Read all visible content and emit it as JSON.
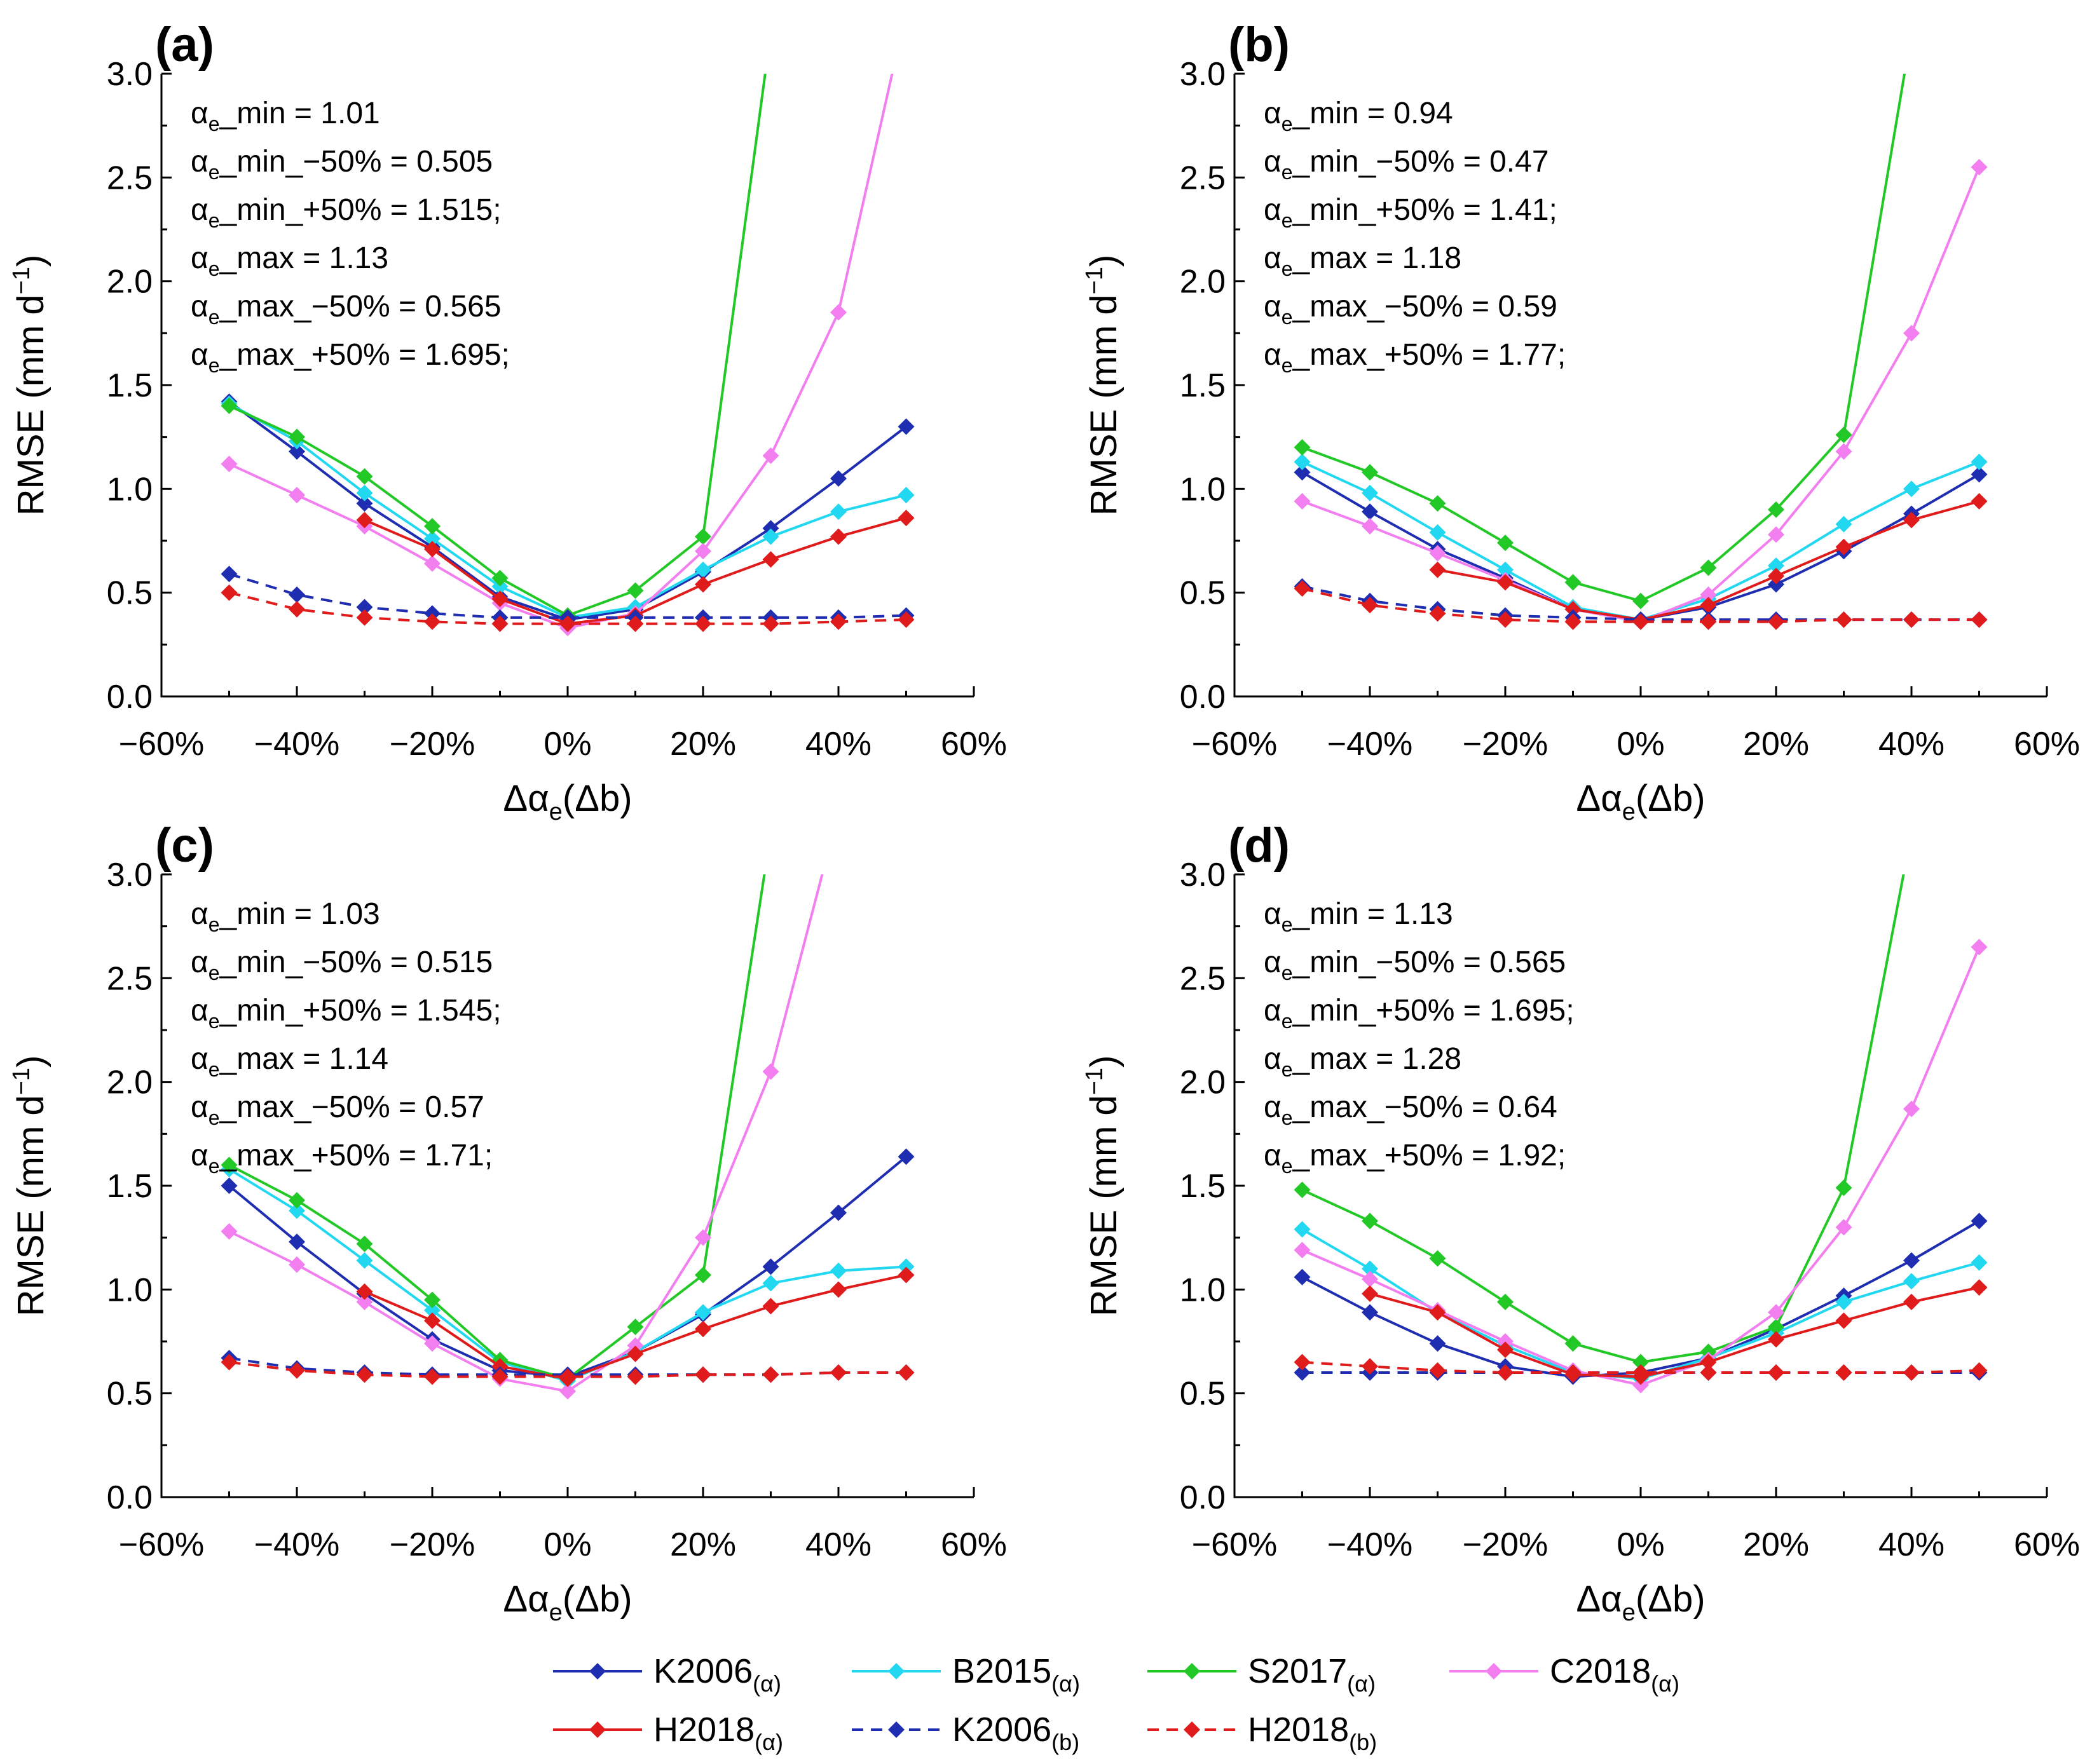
{
  "series_styles": [
    {
      "key": "K2006a",
      "color": "#1f2db0",
      "dash": false
    },
    {
      "key": "B2015a",
      "color": "#22d8f0",
      "dash": false
    },
    {
      "key": "S2017a",
      "color": "#22c825",
      "dash": false
    },
    {
      "key": "C2018a",
      "color": "#f27ef0",
      "dash": false
    },
    {
      "key": "H2018a",
      "color": "#e01b1b",
      "dash": false
    },
    {
      "key": "K2006b",
      "color": "#1f2db0",
      "dash": true
    },
    {
      "key": "H2018b",
      "color": "#e01b1b",
      "dash": true
    }
  ],
  "legend": [
    {
      "base": "K2006",
      "sub": "(α)",
      "color": "#1f2db0",
      "dash": false
    },
    {
      "base": "B2015",
      "sub": "(α)",
      "color": "#22d8f0",
      "dash": false
    },
    {
      "base": "S2017",
      "sub": "(α)",
      "color": "#22c825",
      "dash": false
    },
    {
      "base": "C2018",
      "sub": "(α)",
      "color": "#f27ef0",
      "dash": false
    },
    {
      "base": "H2018",
      "sub": "(α)",
      "color": "#e01b1b",
      "dash": false
    },
    {
      "base": "K2006",
      "sub": "(b)",
      "color": "#1f2db0",
      "dash": true
    },
    {
      "base": "H2018",
      "sub": "(b)",
      "color": "#e01b1b",
      "dash": true
    }
  ],
  "chart_data": [
    {
      "type": "line",
      "panel_label": "(a)",
      "xlabel": {
        "main": "Δα",
        "sub": "e",
        "tail": "(Δb)"
      },
      "ylabel": {
        "main": "RMSE (mm d",
        "sup": "−1",
        "tail": ")"
      },
      "x": [
        -50,
        -40,
        -30,
        -20,
        -10,
        0,
        10,
        20,
        30,
        40,
        50
      ],
      "xlim": [
        -60,
        60
      ],
      "ylim": [
        0,
        3
      ],
      "xticks": [
        "−60%",
        "−40%",
        "−20%",
        "0%",
        "20%",
        "40%",
        "60%"
      ],
      "yticks": [
        "0.0",
        "0.5",
        "1.0",
        "1.5",
        "2.0",
        "2.5",
        "3.0"
      ],
      "annotations": [
        {
          "pre": "α",
          "sub": "e",
          "text": "_min = 1.01"
        },
        {
          "pre": "α",
          "sub": "e",
          "text": "_min_−50% = 0.505"
        },
        {
          "pre": "α",
          "sub": "e",
          "text": "_min_+50% = 1.515;"
        },
        {
          "pre": "α",
          "sub": "e",
          "text": "_max = 1.13"
        },
        {
          "pre": "α",
          "sub": "e",
          "text": "_max_−50% = 0.565"
        },
        {
          "pre": "α",
          "sub": "e",
          "text": "_max_+50% = 1.695;"
        }
      ],
      "series": [
        {
          "name": "K2006(α)",
          "values": [
            1.42,
            1.18,
            0.93,
            0.72,
            0.48,
            0.37,
            0.42,
            0.6,
            0.81,
            1.05,
            1.3
          ]
        },
        {
          "name": "B2015(α)",
          "values": [
            1.41,
            1.23,
            0.98,
            0.76,
            0.53,
            0.38,
            0.43,
            0.61,
            0.77,
            0.89,
            0.97
          ]
        },
        {
          "name": "S2017(α)",
          "values": [
            1.4,
            1.25,
            1.06,
            0.82,
            0.57,
            0.39,
            0.51,
            0.77,
            3.2,
            null,
            null
          ]
        },
        {
          "name": "C2018(α)",
          "values": [
            1.12,
            0.97,
            0.82,
            0.64,
            0.45,
            0.33,
            0.4,
            0.7,
            1.16,
            1.85,
            3.3
          ]
        },
        {
          "name": "H2018(α)",
          "values": [
            null,
            null,
            0.85,
            0.71,
            0.47,
            0.35,
            0.39,
            0.54,
            0.66,
            0.77,
            0.86
          ]
        },
        {
          "name": "K2006(b)",
          "values": [
            0.59,
            0.49,
            0.43,
            0.4,
            0.38,
            0.38,
            0.38,
            0.38,
            0.38,
            0.38,
            0.39
          ]
        },
        {
          "name": "H2018(b)",
          "values": [
            0.5,
            0.42,
            0.38,
            0.36,
            0.35,
            0.35,
            0.35,
            0.35,
            0.35,
            0.36,
            0.37
          ]
        }
      ]
    },
    {
      "type": "line",
      "panel_label": "(b)",
      "xlabel": {
        "main": "Δα",
        "sub": "e",
        "tail": "(Δb)"
      },
      "ylabel": {
        "main": "RMSE (mm d",
        "sup": "−1",
        "tail": ")"
      },
      "x": [
        -50,
        -40,
        -30,
        -20,
        -10,
        0,
        10,
        20,
        30,
        40,
        50
      ],
      "xlim": [
        -60,
        60
      ],
      "ylim": [
        0,
        3
      ],
      "xticks": [
        "−60%",
        "−40%",
        "−20%",
        "0%",
        "20%",
        "40%",
        "60%"
      ],
      "yticks": [
        "0.0",
        "0.5",
        "1.0",
        "1.5",
        "2.0",
        "2.5",
        "3.0"
      ],
      "annotations": [
        {
          "pre": "α",
          "sub": "e",
          "text": "_min = 0.94"
        },
        {
          "pre": "α",
          "sub": "e",
          "text": "_min_−50% = 0.47"
        },
        {
          "pre": "α",
          "sub": "e",
          "text": "_min_+50% = 1.41;"
        },
        {
          "pre": "α",
          "sub": "e",
          "text": "_max = 1.18"
        },
        {
          "pre": "α",
          "sub": "e",
          "text": "_max_−50% = 0.59"
        },
        {
          "pre": "α",
          "sub": "e",
          "text": "_max_+50% = 1.77;"
        }
      ],
      "series": [
        {
          "name": "K2006(α)",
          "values": [
            1.08,
            0.89,
            0.71,
            0.57,
            0.42,
            0.37,
            0.43,
            0.54,
            0.7,
            0.88,
            1.07
          ]
        },
        {
          "name": "B2015(α)",
          "values": [
            1.13,
            0.98,
            0.79,
            0.61,
            0.43,
            0.37,
            0.47,
            0.63,
            0.83,
            1.0,
            1.13
          ]
        },
        {
          "name": "S2017(α)",
          "values": [
            1.2,
            1.08,
            0.93,
            0.74,
            0.55,
            0.46,
            0.62,
            0.9,
            1.26,
            3.2,
            null
          ]
        },
        {
          "name": "C2018(α)",
          "values": [
            0.94,
            0.82,
            0.69,
            0.56,
            0.42,
            0.36,
            0.49,
            0.78,
            1.18,
            1.75,
            2.55
          ]
        },
        {
          "name": "H2018(α)",
          "values": [
            null,
            null,
            0.61,
            0.55,
            0.42,
            0.37,
            0.44,
            0.58,
            0.72,
            0.85,
            0.94
          ]
        },
        {
          "name": "K2006(b)",
          "values": [
            0.53,
            0.46,
            0.42,
            0.39,
            0.38,
            0.37,
            0.37,
            0.37,
            0.37,
            0.37,
            0.37
          ]
        },
        {
          "name": "H2018(b)",
          "values": [
            0.52,
            0.44,
            0.4,
            0.37,
            0.36,
            0.36,
            0.36,
            0.36,
            0.37,
            0.37,
            0.37
          ]
        }
      ]
    },
    {
      "type": "line",
      "panel_label": "(c)",
      "xlabel": {
        "main": "Δα",
        "sub": "e",
        "tail": "(Δb)"
      },
      "ylabel": {
        "main": "RMSE (mm d",
        "sup": "−1",
        "tail": ")"
      },
      "x": [
        -50,
        -40,
        -30,
        -20,
        -10,
        0,
        10,
        20,
        30,
        40,
        50
      ],
      "xlim": [
        -60,
        60
      ],
      "ylim": [
        0,
        3
      ],
      "xticks": [
        "−60%",
        "−40%",
        "−20%",
        "0%",
        "20%",
        "40%",
        "60%"
      ],
      "yticks": [
        "0.0",
        "0.5",
        "1.0",
        "1.5",
        "2.0",
        "2.5",
        "3.0"
      ],
      "annotations": [
        {
          "pre": "α",
          "sub": "e",
          "text": "_min = 1.03"
        },
        {
          "pre": "α",
          "sub": "e",
          "text": "_min_−50% = 0.515"
        },
        {
          "pre": "α",
          "sub": "e",
          "text": "_min_+50% = 1.545;"
        },
        {
          "pre": "α",
          "sub": "e",
          "text": "_max = 1.14"
        },
        {
          "pre": "α",
          "sub": "e",
          "text": "_max_−50% = 0.57"
        },
        {
          "pre": "α",
          "sub": "e",
          "text": "_max_+50% = 1.71;"
        }
      ],
      "series": [
        {
          "name": "K2006(α)",
          "values": [
            1.5,
            1.23,
            0.98,
            0.76,
            0.61,
            0.58,
            0.7,
            0.88,
            1.11,
            1.37,
            1.64
          ]
        },
        {
          "name": "B2015(α)",
          "values": [
            1.58,
            1.38,
            1.14,
            0.9,
            0.65,
            0.56,
            0.7,
            0.89,
            1.03,
            1.09,
            1.11
          ]
        },
        {
          "name": "S2017(α)",
          "values": [
            1.6,
            1.43,
            1.22,
            0.95,
            0.66,
            0.57,
            0.82,
            1.07,
            3.2,
            null,
            null
          ]
        },
        {
          "name": "C2018(α)",
          "values": [
            1.28,
            1.12,
            0.94,
            0.74,
            0.57,
            0.51,
            0.73,
            1.25,
            2.05,
            3.3,
            null
          ]
        },
        {
          "name": "H2018(α)",
          "values": [
            null,
            null,
            0.99,
            0.85,
            0.63,
            0.57,
            0.69,
            0.81,
            0.92,
            1.0,
            1.07
          ]
        },
        {
          "name": "K2006(b)",
          "values": [
            0.67,
            0.62,
            0.6,
            0.59,
            0.59,
            0.59,
            0.59,
            0.59,
            0.59,
            0.6,
            0.6
          ]
        },
        {
          "name": "H2018(b)",
          "values": [
            0.65,
            0.61,
            0.59,
            0.58,
            0.58,
            0.58,
            0.58,
            0.59,
            0.59,
            0.6,
            0.6
          ]
        }
      ]
    },
    {
      "type": "line",
      "panel_label": "(d)",
      "xlabel": {
        "main": "Δα",
        "sub": "e",
        "tail": "(Δb)"
      },
      "ylabel": {
        "main": "RMSE (mm d",
        "sup": "−1",
        "tail": ")"
      },
      "x": [
        -50,
        -40,
        -30,
        -20,
        -10,
        0,
        10,
        20,
        30,
        40,
        50
      ],
      "xlim": [
        -60,
        60
      ],
      "ylim": [
        0,
        3
      ],
      "xticks": [
        "−60%",
        "−40%",
        "−20%",
        "0%",
        "20%",
        "40%",
        "60%"
      ],
      "yticks": [
        "0.0",
        "0.5",
        "1.0",
        "1.5",
        "2.0",
        "2.5",
        "3.0"
      ],
      "annotations": [
        {
          "pre": "α",
          "sub": "e",
          "text": "_min = 1.13"
        },
        {
          "pre": "α",
          "sub": "e",
          "text": "_min_−50% = 0.565"
        },
        {
          "pre": "α",
          "sub": "e",
          "text": "_min_+50% = 1.695;"
        },
        {
          "pre": "α",
          "sub": "e",
          "text": "_max = 1.28"
        },
        {
          "pre": "α",
          "sub": "e",
          "text": "_max_−50% = 0.64"
        },
        {
          "pre": "α",
          "sub": "e",
          "text": "_max_+50% = 1.92;"
        }
      ],
      "series": [
        {
          "name": "K2006(α)",
          "values": [
            1.06,
            0.89,
            0.74,
            0.63,
            0.58,
            0.6,
            0.67,
            0.81,
            0.97,
            1.14,
            1.33
          ]
        },
        {
          "name": "B2015(α)",
          "values": [
            1.29,
            1.1,
            0.89,
            0.73,
            0.6,
            0.57,
            0.67,
            0.79,
            0.94,
            1.04,
            1.13
          ]
        },
        {
          "name": "S2017(α)",
          "values": [
            1.48,
            1.33,
            1.15,
            0.94,
            0.74,
            0.65,
            0.7,
            0.82,
            1.49,
            3.2,
            null
          ]
        },
        {
          "name": "C2018(α)",
          "values": [
            1.19,
            1.05,
            0.9,
            0.75,
            0.61,
            0.54,
            0.66,
            0.89,
            1.3,
            1.87,
            2.65
          ]
        },
        {
          "name": "H2018(α)",
          "values": [
            null,
            0.98,
            0.89,
            0.71,
            0.59,
            0.58,
            0.65,
            0.76,
            0.85,
            0.94,
            1.01
          ]
        },
        {
          "name": "K2006(b)",
          "values": [
            0.6,
            0.6,
            0.6,
            0.6,
            0.6,
            0.6,
            0.6,
            0.6,
            0.6,
            0.6,
            0.6
          ]
        },
        {
          "name": "H2018(b)",
          "values": [
            0.65,
            0.63,
            0.61,
            0.6,
            0.6,
            0.6,
            0.6,
            0.6,
            0.6,
            0.6,
            0.61
          ]
        }
      ]
    }
  ]
}
